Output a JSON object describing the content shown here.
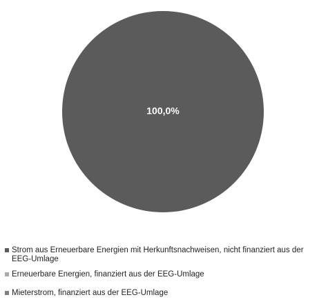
{
  "chart_data": {
    "type": "pie",
    "title": "",
    "series": [
      {
        "name": "Strom aus Erneuerbare Energien mit Herkunftsnachweisen, nicht finanziert aus der EEG-Umlage",
        "value": 100.0,
        "label": "100,0%",
        "color": "#5b5b5b"
      },
      {
        "name": "Erneuerbare Energien, finanziert aus der EEG-Umlage",
        "value": 0.0,
        "label": "",
        "color": "#aaaaaa"
      },
      {
        "name": "Mieterstrom, finanziert aus der EEG-Umlage",
        "value": 0.0,
        "label": "",
        "color": "#7f7f7f"
      }
    ],
    "legend_position": "bottom",
    "label_color": "#ffffff"
  }
}
